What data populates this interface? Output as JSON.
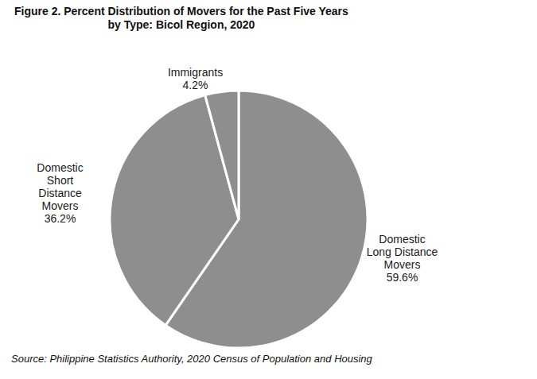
{
  "chart_data": {
    "type": "pie",
    "title": "Figure 2. Percent Distribution of Movers for the Past Five Years\nby Type: Bicol Region, 2020",
    "caption": "Source: Philippine Statistics Authority, 2020 Census of Population and Housing",
    "categories": [
      "Domestic Long Distance Movers",
      "Domestic Short Distance Movers",
      "Immigrants"
    ],
    "values": [
      59.6,
      36.2,
      4.2
    ],
    "value_labels": [
      "59.6%",
      "36.2%",
      "4.2%"
    ],
    "colors": [
      "#8e8e8e",
      "#8e8e8e",
      "#8e8e8e"
    ],
    "data_labels": true
  }
}
